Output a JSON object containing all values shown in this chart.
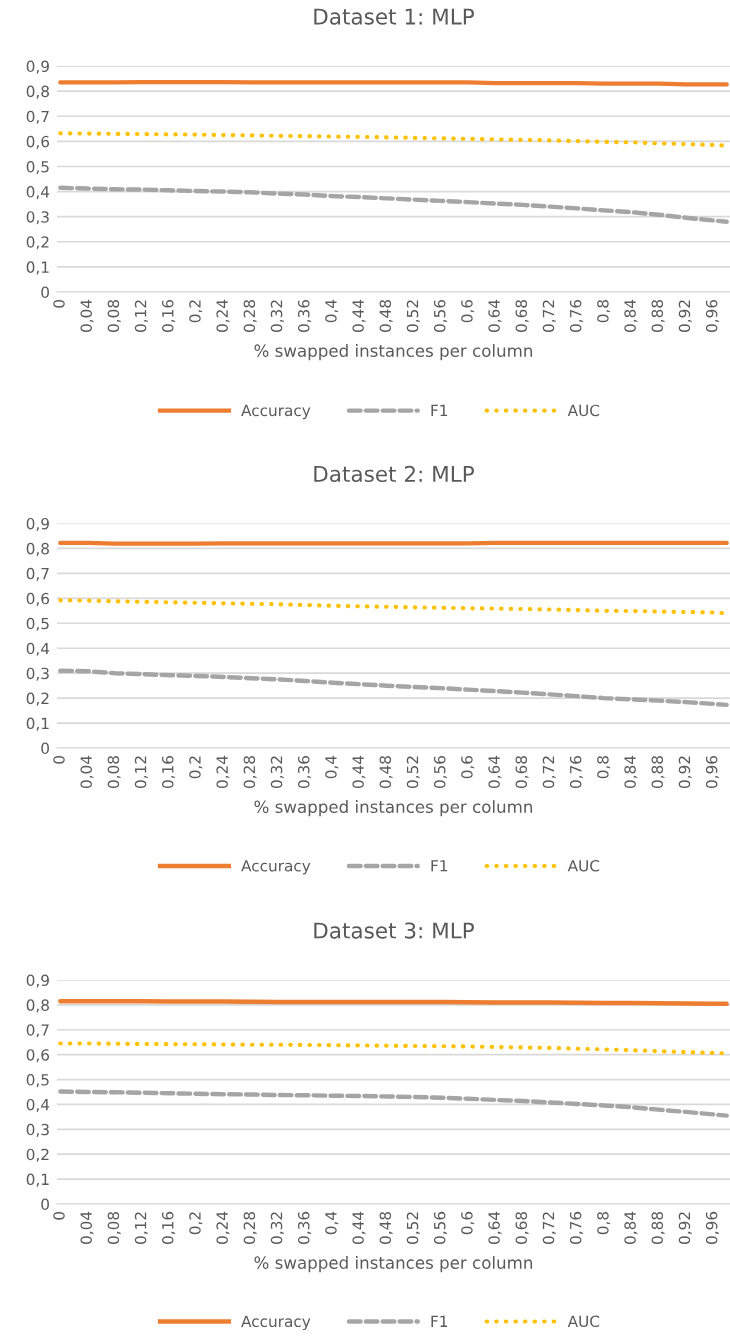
{
  "chart_data": [
    {
      "type": "line",
      "title": "Dataset 1: MLP",
      "xlabel": "% swapped instances per column",
      "legend": "bottom",
      "grid": "y",
      "x": [
        0,
        0.04,
        0.08,
        0.12,
        0.16,
        0.2,
        0.24,
        0.28,
        0.32,
        0.36,
        0.4,
        0.44,
        0.48,
        0.52,
        0.56,
        0.6,
        0.64,
        0.68,
        0.72,
        0.76,
        0.8,
        0.84,
        0.88,
        0.92,
        0.96,
        0.98
      ],
      "xlim": [
        -0.005,
        0.985
      ],
      "xticks": [
        0,
        {
          "value": 0.04,
          "label": "0,04"
        },
        {
          "value": 0.08,
          "label": "0,08"
        },
        {
          "value": 0.12,
          "label": "0,12"
        },
        {
          "value": 0.16,
          "label": "0,16"
        },
        {
          "value": 0.2,
          "label": "0,2"
        },
        {
          "value": 0.24,
          "label": "0,24"
        },
        {
          "value": 0.28,
          "label": "0,28"
        },
        {
          "value": 0.32,
          "label": "0,32"
        },
        {
          "value": 0.36,
          "label": "0,36"
        },
        {
          "value": 0.4,
          "label": "0,4"
        },
        {
          "value": 0.44,
          "label": "0,44"
        },
        {
          "value": 0.48,
          "label": "0,48"
        },
        {
          "value": 0.52,
          "label": "0,52"
        },
        {
          "value": 0.56,
          "label": "0,56"
        },
        {
          "value": 0.6,
          "label": "0,6"
        },
        {
          "value": 0.64,
          "label": "0,64"
        },
        {
          "value": 0.68,
          "label": "0,68"
        },
        {
          "value": 0.72,
          "label": "0,72"
        },
        {
          "value": 0.76,
          "label": "0,76"
        },
        {
          "value": 0.8,
          "label": "0,8"
        },
        {
          "value": 0.84,
          "label": "0,84"
        },
        {
          "value": 0.88,
          "label": "0,88"
        },
        {
          "value": 0.92,
          "label": "0,92"
        },
        {
          "value": 0.96,
          "label": "0,96"
        }
      ],
      "ylim": [
        0,
        0.9
      ],
      "yticks": [
        0,
        {
          "value": 0.1,
          "label": "0,1"
        },
        {
          "value": 0.2,
          "label": "0,2"
        },
        {
          "value": 0.3,
          "label": "0,3"
        },
        {
          "value": 0.4,
          "label": "0,4"
        },
        {
          "value": 0.5,
          "label": "0,5"
        },
        {
          "value": 0.6,
          "label": "0,6"
        },
        {
          "value": 0.7,
          "label": "0,7"
        },
        {
          "value": 0.8,
          "label": "0,8"
        },
        {
          "value": 0.9,
          "label": "0,9"
        }
      ],
      "series": [
        {
          "name": "Accuracy",
          "color": "#ed7d31",
          "line_style": "solid",
          "values": [
            0.835,
            0.835,
            0.835,
            0.836,
            0.836,
            0.836,
            0.836,
            0.835,
            0.835,
            0.835,
            0.835,
            0.835,
            0.835,
            0.835,
            0.835,
            0.835,
            0.832,
            0.832,
            0.832,
            0.832,
            0.83,
            0.83,
            0.83,
            0.827,
            0.827,
            0.827
          ]
        },
        {
          "name": "F1",
          "color": "#a5a5a5",
          "line_style": "dashed",
          "values": [
            0.415,
            0.412,
            0.409,
            0.408,
            0.405,
            0.402,
            0.4,
            0.397,
            0.392,
            0.388,
            0.382,
            0.378,
            0.373,
            0.368,
            0.363,
            0.358,
            0.352,
            0.347,
            0.34,
            0.333,
            0.325,
            0.318,
            0.308,
            0.296,
            0.285,
            0.28
          ]
        },
        {
          "name": "AUC",
          "color": "#ffc000",
          "line_style": "dotted",
          "values": [
            0.632,
            0.631,
            0.63,
            0.629,
            0.628,
            0.627,
            0.625,
            0.624,
            0.622,
            0.621,
            0.619,
            0.618,
            0.616,
            0.614,
            0.612,
            0.61,
            0.608,
            0.606,
            0.604,
            0.601,
            0.598,
            0.596,
            0.592,
            0.589,
            0.586,
            0.583
          ]
        }
      ]
    },
    {
      "type": "line",
      "title": "Dataset 2: MLP",
      "xlabel": "% swapped instances per column",
      "legend": "bottom",
      "grid": "y",
      "x": [
        0,
        0.04,
        0.08,
        0.12,
        0.16,
        0.2,
        0.24,
        0.28,
        0.32,
        0.36,
        0.4,
        0.44,
        0.48,
        0.52,
        0.56,
        0.6,
        0.64,
        0.68,
        0.72,
        0.76,
        0.8,
        0.84,
        0.88,
        0.92,
        0.96,
        0.98
      ],
      "xlim": [
        -0.005,
        0.985
      ],
      "xticks": [
        0,
        {
          "value": 0.04,
          "label": "0,04"
        },
        {
          "value": 0.08,
          "label": "0,08"
        },
        {
          "value": 0.12,
          "label": "0,12"
        },
        {
          "value": 0.16,
          "label": "0,16"
        },
        {
          "value": 0.2,
          "label": "0,2"
        },
        {
          "value": 0.24,
          "label": "0,24"
        },
        {
          "value": 0.28,
          "label": "0,28"
        },
        {
          "value": 0.32,
          "label": "0,32"
        },
        {
          "value": 0.36,
          "label": "0,36"
        },
        {
          "value": 0.4,
          "label": "0,4"
        },
        {
          "value": 0.44,
          "label": "0,44"
        },
        {
          "value": 0.48,
          "label": "0,48"
        },
        {
          "value": 0.52,
          "label": "0,52"
        },
        {
          "value": 0.56,
          "label": "0,56"
        },
        {
          "value": 0.6,
          "label": "0,6"
        },
        {
          "value": 0.64,
          "label": "0,64"
        },
        {
          "value": 0.68,
          "label": "0,68"
        },
        {
          "value": 0.72,
          "label": "0,72"
        },
        {
          "value": 0.76,
          "label": "0,76"
        },
        {
          "value": 0.8,
          "label": "0,8"
        },
        {
          "value": 0.84,
          "label": "0,84"
        },
        {
          "value": 0.88,
          "label": "0,88"
        },
        {
          "value": 0.92,
          "label": "0,92"
        },
        {
          "value": 0.96,
          "label": "0,96"
        }
      ],
      "ylim": [
        0,
        0.9
      ],
      "yticks": [
        0,
        {
          "value": 0.1,
          "label": "0,1"
        },
        {
          "value": 0.2,
          "label": "0,2"
        },
        {
          "value": 0.3,
          "label": "0,3"
        },
        {
          "value": 0.4,
          "label": "0,4"
        },
        {
          "value": 0.5,
          "label": "0,5"
        },
        {
          "value": 0.6,
          "label": "0,6"
        },
        {
          "value": 0.7,
          "label": "0,7"
        },
        {
          "value": 0.8,
          "label": "0,8"
        },
        {
          "value": 0.9,
          "label": "0,9"
        }
      ],
      "series": [
        {
          "name": "Accuracy",
          "color": "#ed7d31",
          "line_style": "solid",
          "values": [
            0.822,
            0.822,
            0.819,
            0.819,
            0.819,
            0.819,
            0.82,
            0.82,
            0.82,
            0.82,
            0.82,
            0.82,
            0.82,
            0.82,
            0.82,
            0.82,
            0.822,
            0.822,
            0.822,
            0.822,
            0.822,
            0.822,
            0.822,
            0.822,
            0.822,
            0.822
          ]
        },
        {
          "name": "F1",
          "color": "#a5a5a5",
          "line_style": "dashed",
          "values": [
            0.31,
            0.308,
            0.3,
            0.296,
            0.292,
            0.289,
            0.285,
            0.28,
            0.275,
            0.269,
            0.262,
            0.256,
            0.25,
            0.245,
            0.24,
            0.234,
            0.228,
            0.222,
            0.215,
            0.208,
            0.2,
            0.195,
            0.19,
            0.184,
            0.177,
            0.173
          ]
        },
        {
          "name": "AUC",
          "color": "#ffc000",
          "line_style": "dotted",
          "values": [
            0.592,
            0.591,
            0.588,
            0.586,
            0.584,
            0.582,
            0.58,
            0.578,
            0.576,
            0.573,
            0.57,
            0.568,
            0.566,
            0.564,
            0.562,
            0.56,
            0.559,
            0.557,
            0.555,
            0.553,
            0.55,
            0.549,
            0.547,
            0.545,
            0.543,
            0.54
          ]
        }
      ]
    },
    {
      "type": "line",
      "title": "Dataset 3: MLP",
      "xlabel": "% swapped instances per column",
      "legend": "bottom",
      "grid": "y",
      "x": [
        0,
        0.04,
        0.08,
        0.12,
        0.16,
        0.2,
        0.24,
        0.28,
        0.32,
        0.36,
        0.4,
        0.44,
        0.48,
        0.52,
        0.56,
        0.6,
        0.64,
        0.68,
        0.72,
        0.76,
        0.8,
        0.84,
        0.88,
        0.92,
        0.96,
        0.98
      ],
      "xlim": [
        -0.005,
        0.985
      ],
      "xticks": [
        0,
        {
          "value": 0.04,
          "label": "0,04"
        },
        {
          "value": 0.08,
          "label": "0,08"
        },
        {
          "value": 0.12,
          "label": "0,12"
        },
        {
          "value": 0.16,
          "label": "0,16"
        },
        {
          "value": 0.2,
          "label": "0,2"
        },
        {
          "value": 0.24,
          "label": "0,24"
        },
        {
          "value": 0.28,
          "label": "0,28"
        },
        {
          "value": 0.32,
          "label": "0,32"
        },
        {
          "value": 0.36,
          "label": "0,36"
        },
        {
          "value": 0.4,
          "label": "0,4"
        },
        {
          "value": 0.44,
          "label": "0,44"
        },
        {
          "value": 0.48,
          "label": "0,48"
        },
        {
          "value": 0.52,
          "label": "0,52"
        },
        {
          "value": 0.56,
          "label": "0,56"
        },
        {
          "value": 0.6,
          "label": "0,6"
        },
        {
          "value": 0.64,
          "label": "0,64"
        },
        {
          "value": 0.68,
          "label": "0,68"
        },
        {
          "value": 0.72,
          "label": "0,72"
        },
        {
          "value": 0.76,
          "label": "0,76"
        },
        {
          "value": 0.8,
          "label": "0,8"
        },
        {
          "value": 0.84,
          "label": "0,84"
        },
        {
          "value": 0.88,
          "label": "0,88"
        },
        {
          "value": 0.92,
          "label": "0,92"
        },
        {
          "value": 0.96,
          "label": "0,96"
        }
      ],
      "ylim": [
        0,
        0.9
      ],
      "yticks": [
        0,
        {
          "value": 0.1,
          "label": "0,1"
        },
        {
          "value": 0.2,
          "label": "0,2"
        },
        {
          "value": 0.3,
          "label": "0,3"
        },
        {
          "value": 0.4,
          "label": "0,4"
        },
        {
          "value": 0.5,
          "label": "0,5"
        },
        {
          "value": 0.6,
          "label": "0,6"
        },
        {
          "value": 0.7,
          "label": "0,7"
        },
        {
          "value": 0.8,
          "label": "0,8"
        },
        {
          "value": 0.9,
          "label": "0,9"
        }
      ],
      "series": [
        {
          "name": "Accuracy",
          "color": "#ed7d31",
          "line_style": "solid",
          "values": [
            0.815,
            0.815,
            0.815,
            0.815,
            0.814,
            0.814,
            0.814,
            0.813,
            0.812,
            0.812,
            0.812,
            0.812,
            0.812,
            0.812,
            0.812,
            0.811,
            0.81,
            0.81,
            0.81,
            0.809,
            0.808,
            0.808,
            0.807,
            0.806,
            0.805,
            0.805
          ]
        },
        {
          "name": "F1",
          "color": "#a5a5a5",
          "line_style": "dashed",
          "values": [
            0.452,
            0.45,
            0.449,
            0.447,
            0.445,
            0.443,
            0.441,
            0.44,
            0.438,
            0.437,
            0.435,
            0.434,
            0.432,
            0.43,
            0.427,
            0.423,
            0.418,
            0.414,
            0.408,
            0.402,
            0.396,
            0.389,
            0.379,
            0.37,
            0.36,
            0.355
          ]
        },
        {
          "name": "AUC",
          "color": "#ffc000",
          "line_style": "dotted",
          "values": [
            0.645,
            0.645,
            0.644,
            0.643,
            0.642,
            0.642,
            0.641,
            0.64,
            0.64,
            0.639,
            0.638,
            0.637,
            0.636,
            0.635,
            0.634,
            0.633,
            0.631,
            0.629,
            0.627,
            0.624,
            0.621,
            0.618,
            0.614,
            0.61,
            0.607,
            0.605
          ]
        }
      ]
    }
  ]
}
